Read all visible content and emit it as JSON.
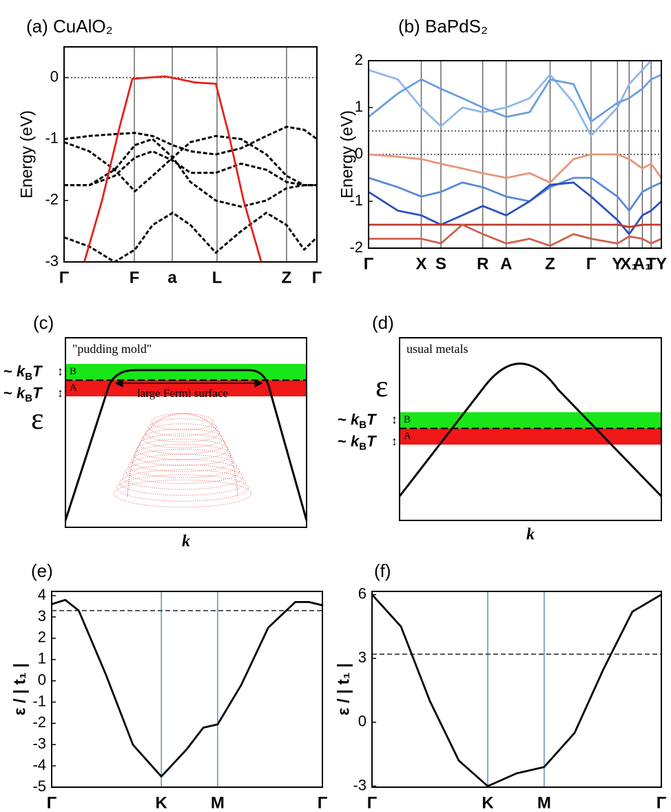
{
  "chart_data": [
    {
      "type": "line",
      "title": "(a) CuAlO₂",
      "y_label": "Energy (eV)",
      "ylim": [
        -3,
        0.5
      ],
      "yticks": [
        -3,
        -2,
        -1,
        0
      ],
      "xlim": [
        0,
        1
      ],
      "xticks": [
        {
          "value": 0,
          "label": "Γ"
        },
        {
          "value": 0.278,
          "label": "F"
        },
        {
          "value": 0.428,
          "label": "a"
        },
        {
          "value": 0.605,
          "label": "L"
        },
        {
          "value": 0.88,
          "label": "Z"
        },
        {
          "value": 1,
          "label": "Γ"
        }
      ],
      "hlines": [
        {
          "value": 0,
          "style": "dotted"
        }
      ],
      "series": [
        {
          "color": "#000000",
          "style": "dashed",
          "x": [
            0,
            0.1,
            0.2,
            0.28,
            0.35,
            0.43,
            0.5,
            0.6,
            0.7,
            0.8,
            0.88,
            0.95,
            1
          ],
          "values": [
            -1.0,
            -0.95,
            -0.92,
            -0.9,
            -0.95,
            -1.1,
            -1.2,
            -1.25,
            -1.15,
            -0.95,
            -0.8,
            -0.85,
            -1.0
          ]
        },
        {
          "color": "#000000",
          "style": "dashed",
          "x": [
            0,
            0.1,
            0.2,
            0.28,
            0.35,
            0.43,
            0.5,
            0.6,
            0.7,
            0.8,
            0.88,
            0.95,
            1
          ],
          "values": [
            -1.05,
            -1.2,
            -1.5,
            -1.85,
            -1.6,
            -1.3,
            -1.05,
            -0.95,
            -1.0,
            -1.25,
            -1.6,
            -1.75,
            -1.75
          ]
        },
        {
          "color": "#000000",
          "style": "dashed",
          "x": [
            0,
            0.1,
            0.2,
            0.28,
            0.35,
            0.43,
            0.5,
            0.6,
            0.7,
            0.8,
            0.88,
            0.95,
            1
          ],
          "values": [
            -1.75,
            -1.75,
            -1.6,
            -1.3,
            -1.2,
            -1.35,
            -1.55,
            -1.55,
            -1.4,
            -1.5,
            -1.7,
            -1.75,
            -1.75
          ]
        },
        {
          "color": "#000000",
          "style": "dashed",
          "x": [
            0,
            0.1,
            0.2,
            0.28,
            0.35,
            0.43,
            0.5,
            0.6,
            0.7,
            0.8,
            0.88,
            0.95,
            1
          ],
          "values": [
            -1.75,
            -1.75,
            -1.5,
            -1.1,
            -1.0,
            -1.3,
            -1.7,
            -2.0,
            -2.1,
            -2.0,
            -1.8,
            -1.75,
            -1.75
          ]
        },
        {
          "color": "#000000",
          "style": "dashed",
          "x": [
            0,
            0.1,
            0.2,
            0.28,
            0.35,
            0.43,
            0.5,
            0.6,
            0.7,
            0.8,
            0.88,
            0.95,
            1
          ],
          "values": [
            -2.6,
            -2.75,
            -3.0,
            -2.8,
            -2.4,
            -2.2,
            -2.4,
            -2.85,
            -2.5,
            -2.2,
            -2.4,
            -2.8,
            -2.6
          ]
        },
        {
          "color": "#e8201a",
          "style": "solid",
          "x": [
            0.08,
            0.15,
            0.22,
            0.27,
            0.33,
            0.4,
            0.45,
            0.52,
            0.6,
            0.65,
            0.71,
            0.78
          ],
          "values": [
            -3,
            -2.0,
            -0.8,
            -0.02,
            0,
            0.02,
            -0.02,
            -0.08,
            -0.1,
            -0.9,
            -2.0,
            -3
          ]
        }
      ]
    },
    {
      "type": "line",
      "title": "(b) BaPdS₂",
      "y_label": "Energy (eV)",
      "ylim": [
        -2,
        2
      ],
      "yticks": [
        -2,
        -1,
        0,
        1,
        2
      ],
      "xlim": [
        0,
        1
      ],
      "xticks": [
        {
          "value": 0,
          "label": "Γ"
        },
        {
          "value": 0.18,
          "label": "X"
        },
        {
          "value": 0.247,
          "label": "S"
        },
        {
          "value": 0.39,
          "label": "R"
        },
        {
          "value": 0.47,
          "label": "A"
        },
        {
          "value": 0.62,
          "label": "Z"
        },
        {
          "value": 0.76,
          "label": "Γ"
        },
        {
          "value": 0.85,
          "label": "Y"
        },
        {
          "value": 0.89,
          "label": "X₁"
        },
        {
          "value": 0.935,
          "label": "A₁"
        },
        {
          "value": 0.965,
          "label": "T"
        },
        {
          "value": 1,
          "label": "Y"
        }
      ],
      "hlines": [
        {
          "value": 0.5,
          "style": "dotted"
        },
        {
          "value": 0,
          "style": "dotted"
        }
      ],
      "series": [
        {
          "color": "#8fb8e8",
          "style": "solid",
          "x": [
            0,
            0.1,
            0.18,
            0.247,
            0.32,
            0.39,
            0.47,
            0.55,
            0.62,
            0.7,
            0.76,
            0.85,
            0.89,
            0.935,
            0.965,
            1
          ],
          "values": [
            1.8,
            1.6,
            1.0,
            0.6,
            1.0,
            0.9,
            1.0,
            1.2,
            1.7,
            1.1,
            0.4,
            1.0,
            1.5,
            1.8,
            2.0,
            2.0
          ]
        },
        {
          "color": "#6a9ee0",
          "style": "solid",
          "x": [
            0,
            0.1,
            0.18,
            0.247,
            0.32,
            0.39,
            0.47,
            0.55,
            0.62,
            0.7,
            0.76,
            0.85,
            0.89,
            0.935,
            0.965,
            1
          ],
          "values": [
            0.8,
            1.3,
            1.6,
            1.4,
            1.2,
            1.0,
            0.8,
            0.9,
            1.6,
            1.5,
            0.7,
            1.1,
            1.2,
            1.4,
            1.6,
            1.7
          ]
        },
        {
          "color": "#e8957a",
          "style": "solid",
          "x": [
            0,
            0.1,
            0.18,
            0.247,
            0.32,
            0.39,
            0.47,
            0.55,
            0.62,
            0.7,
            0.76,
            0.85,
            0.89,
            0.935,
            0.965,
            1
          ],
          "values": [
            0,
            -0.05,
            -0.1,
            -0.2,
            -0.3,
            -0.4,
            -0.5,
            -0.4,
            -0.6,
            -0.1,
            0,
            0,
            -0.1,
            -0.3,
            -0.2,
            -0.5
          ]
        },
        {
          "color": "#5b8ad8",
          "style": "solid",
          "x": [
            0,
            0.1,
            0.18,
            0.247,
            0.32,
            0.39,
            0.47,
            0.55,
            0.62,
            0.7,
            0.76,
            0.85,
            0.89,
            0.935,
            0.965,
            1
          ],
          "values": [
            -0.5,
            -0.7,
            -0.9,
            -0.8,
            -0.6,
            -0.7,
            -0.9,
            -1.0,
            -0.7,
            -0.5,
            -0.5,
            -0.9,
            -1.2,
            -0.8,
            -0.7,
            -0.6
          ]
        },
        {
          "color": "#2c4fc0",
          "style": "solid",
          "x": [
            0,
            0.1,
            0.18,
            0.247,
            0.32,
            0.39,
            0.47,
            0.55,
            0.62,
            0.7,
            0.76,
            0.85,
            0.89,
            0.935,
            0.965,
            1
          ],
          "values": [
            -0.8,
            -1.2,
            -1.3,
            -1.5,
            -1.3,
            -1.1,
            -1.3,
            -1.0,
            -0.65,
            -0.6,
            -0.9,
            -1.4,
            -1.7,
            -1.3,
            -1.2,
            -1.0
          ]
        },
        {
          "color": "#c0392b",
          "style": "solid",
          "x": [
            0,
            0.1,
            0.18,
            0.247,
            0.32,
            0.39,
            0.47,
            0.55,
            0.62,
            0.7,
            0.76,
            0.85,
            0.89,
            0.935,
            0.965,
            1
          ],
          "values": [
            -1.5,
            -1.5,
            -1.5,
            -1.5,
            -1.5,
            -1.5,
            -1.5,
            -1.5,
            -1.5,
            -1.5,
            -1.5,
            -1.5,
            -1.55,
            -1.5,
            -1.5,
            -1.5
          ]
        },
        {
          "color": "#d0604a",
          "style": "solid",
          "x": [
            0,
            0.1,
            0.18,
            0.247,
            0.32,
            0.39,
            0.47,
            0.55,
            0.62,
            0.7,
            0.76,
            0.85,
            0.89,
            0.935,
            0.965,
            1
          ],
          "values": [
            -1.8,
            -1.8,
            -1.8,
            -1.9,
            -1.5,
            -1.7,
            -1.9,
            -1.8,
            -1.95,
            -1.7,
            -1.8,
            -1.9,
            -1.75,
            -1.8,
            -1.9,
            -1.8
          ]
        }
      ]
    },
    {
      "type": "line",
      "title": "(e)",
      "y_label": "ε / | t₁ |",
      "ylim": [
        -5,
        4.2
      ],
      "yticks": [
        -5,
        -4,
        -3,
        -2,
        -1,
        0,
        1,
        2,
        3,
        4
      ],
      "xlim": [
        0,
        1
      ],
      "xticks": [
        {
          "value": 0,
          "label": "Γ"
        },
        {
          "value": 0.405,
          "label": "K"
        },
        {
          "value": 0.613,
          "label": "M"
        },
        {
          "value": 1,
          "label": "Γ"
        }
      ],
      "hlines": [
        {
          "value": 3.3,
          "style": "dashed"
        }
      ],
      "series": [
        {
          "color": "#000000",
          "style": "solid",
          "x": [
            0,
            0.05,
            0.1,
            0.2,
            0.3,
            0.405,
            0.5,
            0.56,
            0.613,
            0.7,
            0.8,
            0.9,
            0.95,
            1
          ],
          "values": [
            3.6,
            3.8,
            3.3,
            0.3,
            -3.0,
            -4.5,
            -3.2,
            -2.2,
            -2.05,
            -0.2,
            2.5,
            3.7,
            3.7,
            3.55
          ]
        }
      ]
    },
    {
      "type": "line",
      "title": "(f)",
      "y_label": "ε / | t₁ |",
      "ylim": [
        -3.05,
        6.15
      ],
      "yticks": [
        -3,
        0,
        3,
        6
      ],
      "xlim": [
        0,
        1
      ],
      "xticks": [
        {
          "value": 0,
          "label": "Γ"
        },
        {
          "value": 0.4,
          "label": "K"
        },
        {
          "value": 0.595,
          "label": "M"
        },
        {
          "value": 1,
          "label": "Γ"
        }
      ],
      "hlines": [
        {
          "value": 3.2,
          "style": "dashed"
        }
      ],
      "series": [
        {
          "color": "#000000",
          "style": "solid",
          "x": [
            0,
            0.1,
            0.2,
            0.3,
            0.4,
            0.5,
            0.595,
            0.7,
            0.8,
            0.9,
            1
          ],
          "values": [
            6,
            4.5,
            1.0,
            -1.8,
            -3.0,
            -2.4,
            -2.1,
            -0.5,
            2.5,
            5.2,
            6
          ]
        }
      ]
    }
  ],
  "schematics": [
    {
      "label": "(c)",
      "caption": "\"pudding mold\"",
      "band_upper": "B",
      "band_lower": "A",
      "fermi_note": "large Fermi surface",
      "energy_symbol": "ε",
      "k_symbol": "k",
      "kbt": [
        "~ ",
        "k",
        "B",
        "T"
      ]
    },
    {
      "label": "(d)",
      "caption": "usual metals",
      "band_upper": "B",
      "band_lower": "A",
      "energy_symbol": "ε",
      "k_symbol": "k",
      "kbt": [
        "~ ",
        "k",
        "B",
        "T"
      ]
    }
  ]
}
